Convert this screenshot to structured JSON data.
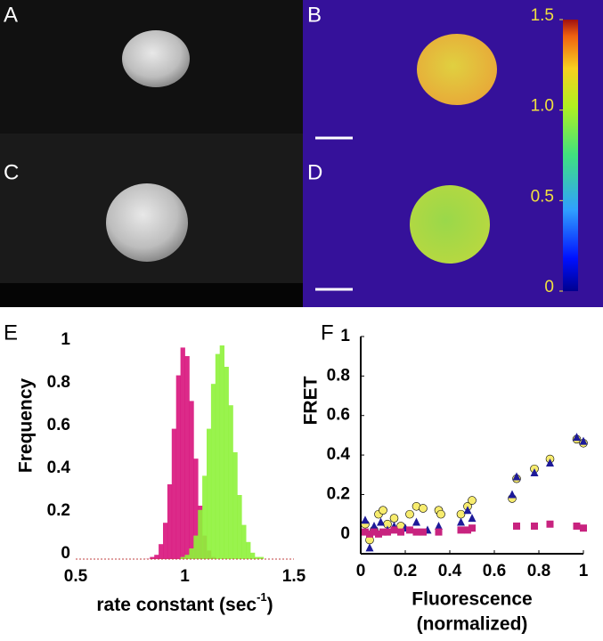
{
  "panel_labels": [
    "A",
    "B",
    "C",
    "D",
    "E",
    "F"
  ],
  "colorbar": {
    "ylim": [
      0,
      1.5
    ],
    "ticks": [
      0,
      0.5,
      {
        "value": 1,
        "label": "1.0"
      },
      1.5
    ]
  },
  "chart_data": [
    {
      "type": "histogram",
      "y_label": "Frequency",
      "x_label": "rate constant (sec",
      "x_label_sup": "-1",
      "x_label_end": ")",
      "xlim": [
        0.5,
        1.5
      ],
      "xticks": [
        0.5,
        1,
        1.5
      ],
      "ylim": [
        0,
        1
      ],
      "yticks": [
        0,
        0.2,
        0.4,
        0.6,
        0.8,
        1
      ],
      "bins": [
        0.8,
        0.82,
        0.84,
        0.86,
        0.88,
        0.9,
        0.92,
        0.94,
        0.96,
        0.98,
        1.0,
        1.02,
        1.04,
        1.06,
        1.08,
        1.1,
        1.12,
        1.14,
        1.16,
        1.18,
        1.2,
        1.22,
        1.24,
        1.26,
        1.28,
        1.3,
        1.32,
        1.34,
        1.36,
        1.38,
        1.4
      ],
      "series": [
        {
          "color": "#d8137c",
          "values": [
            0,
            0.001,
            0.01,
            0.02,
            0.07,
            0.17,
            0.35,
            0.61,
            0.86,
            0.99,
            0.95,
            0.74,
            0.47,
            0.25,
            0.11,
            0.04,
            0.01,
            0,
            0,
            0,
            0,
            0,
            0,
            0,
            0,
            0,
            0,
            0,
            0,
            0
          ]
        },
        {
          "color": "#8ef23a",
          "values": [
            0,
            0,
            0,
            0,
            0,
            0,
            0,
            0,
            0,
            0.01,
            0.02,
            0.05,
            0.11,
            0.23,
            0.39,
            0.61,
            0.82,
            0.96,
            1.0,
            0.9,
            0.72,
            0.5,
            0.3,
            0.16,
            0.08,
            0.03,
            0.01,
            0.01,
            0,
            0
          ]
        }
      ]
    },
    {
      "type": "scatter",
      "y_label": "FRET",
      "x_label": [
        "Fluorescence",
        "(normalized)"
      ],
      "xlim": [
        0,
        1
      ],
      "xticks": [
        0,
        0.2,
        0.4,
        0.6,
        0.8,
        1
      ],
      "ylim": [
        -0.1,
        1
      ],
      "yticks": [
        0,
        0.2,
        0.4,
        0.6,
        0.8,
        1
      ],
      "series": [
        {
          "color": "#f7ec6e",
          "marker": "circle",
          "x": [
            0.02,
            0.04,
            0.06,
            0.08,
            0.1,
            0.12,
            0.15,
            0.18,
            0.22,
            0.25,
            0.28,
            0.35,
            0.36,
            0.45,
            0.48,
            0.5,
            0.68,
            0.7,
            0.78,
            0.85,
            0.97,
            1.0
          ],
          "values": [
            0.05,
            -0.03,
            0.02,
            0.1,
            0.12,
            0.05,
            0.08,
            0.04,
            0.1,
            0.14,
            0.13,
            0.12,
            0.1,
            0.1,
            0.14,
            0.17,
            0.18,
            0.28,
            0.33,
            0.38,
            0.48,
            0.46
          ]
        },
        {
          "color": "#1d1a99",
          "marker": "triangle",
          "x": [
            0.02,
            0.04,
            0.06,
            0.09,
            0.12,
            0.15,
            0.2,
            0.25,
            0.3,
            0.35,
            0.45,
            0.48,
            0.5,
            0.68,
            0.7,
            0.78,
            0.85,
            0.97,
            1.0
          ],
          "values": [
            0.07,
            -0.07,
            0.04,
            0.06,
            0.02,
            0.04,
            0.03,
            0.06,
            0.02,
            0.04,
            0.06,
            0.12,
            0.08,
            0.2,
            0.29,
            0.31,
            0.36,
            0.49,
            0.47
          ]
        },
        {
          "color": "#c8237f",
          "marker": "square",
          "x": [
            0.02,
            0.04,
            0.06,
            0.08,
            0.1,
            0.12,
            0.15,
            0.18,
            0.22,
            0.25,
            0.28,
            0.35,
            0.45,
            0.48,
            0.5,
            0.7,
            0.78,
            0.85,
            0.97,
            1.0
          ],
          "values": [
            0.01,
            0,
            0.01,
            0,
            0.01,
            0.01,
            0.02,
            0.01,
            0.02,
            0.01,
            0.01,
            0.01,
            0.02,
            0.02,
            0.03,
            0.04,
            0.04,
            0.05,
            0.04,
            0.03
          ]
        }
      ]
    }
  ]
}
